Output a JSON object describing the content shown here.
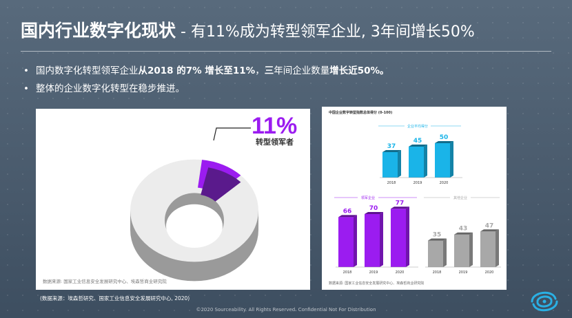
{
  "header": {
    "title": "国内行业数字化现状",
    "subtitle": " - 有11%成为转型领军企业, 3年间增长50%"
  },
  "bullets": [
    {
      "parts": [
        "国内数字化转型领军企业",
        "从2018 的7% 增长至11%",
        "，",
        "三",
        "年间企业数量",
        "增长近50%。"
      ]
    },
    {
      "text": "整体的企业数字化转型在稳步推进。"
    }
  ],
  "donut": {
    "value_label": "11%",
    "label": "转型领军者",
    "share": 0.11,
    "colors": {
      "highlight": "#9b1cf0",
      "highlight_dark": "#5a1a8c",
      "base": "#ececec",
      "side": "#9a9a9a"
    },
    "source": "数据来源: 国家工业信息安全发展研究中心、埃森哲商业研究院"
  },
  "chart_data": [
    {
      "type": "bar",
      "title": "中国企业数字转型指数总体得分 (0-100)",
      "series": [
        {
          "name": "企业平均得分",
          "values": [
            37,
            45,
            50
          ]
        }
      ],
      "categories": [
        "2018",
        "2019",
        "2020"
      ],
      "color": "#1ab4e8"
    },
    {
      "type": "bar",
      "series": [
        {
          "name": "领军企业",
          "values": [
            66,
            70,
            77
          ]
        }
      ],
      "categories": [
        "2018",
        "2019",
        "2020"
      ],
      "color": "#9b1cf0"
    },
    {
      "type": "bar",
      "series": [
        {
          "name": "其他企业",
          "values": [
            35,
            43,
            47
          ]
        }
      ],
      "categories": [
        "2018",
        "2019",
        "2020"
      ],
      "color": "#a8a8a8"
    }
  ],
  "right_source": "数据来源: 国家工业信息安全发展研究中心、埃森哲商业研究院",
  "footnote": "(数据来源：埃森哲研究、国家工业信息安全发展研究中心, 2020)",
  "copyright": "©2020 Sourceability. All Rights Reserved. Confidential Not For Distribution",
  "logo_icon": "sourceability-logo-icon",
  "theme": {
    "bg": "#4f6174",
    "accent_cyan": "#2ab0e4"
  }
}
